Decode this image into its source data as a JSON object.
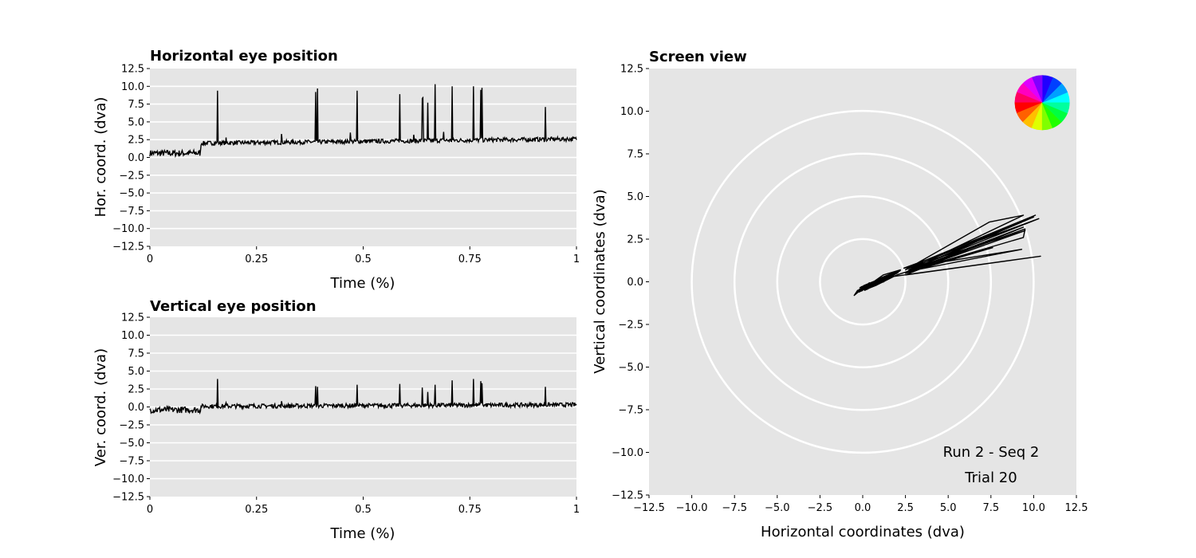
{
  "chart_data": [
    {
      "type": "line",
      "title": "Horizontal eye position",
      "xlabel": "Time (%)",
      "ylabel": "Hor. coord. (dva)",
      "xlim": [
        0,
        1
      ],
      "ylim": [
        -12.5,
        12.5
      ],
      "xticks": [
        "0",
        "0.25",
        "0.5",
        "0.75",
        "1"
      ],
      "yticks": [
        "12.5",
        "10.0",
        "7.5",
        "5.0",
        "2.5",
        "0.0",
        "−2.5",
        "−5.0",
        "−7.5",
        "−10.0",
        "−12.5"
      ],
      "grid": "horizontal",
      "background": "#e5e5e5",
      "line_color": "#000000",
      "baseline": {
        "start_value": 0.6,
        "after_value": 2.0,
        "end_value": 2.6,
        "step_at": 0.12
      },
      "peaks": [
        {
          "t": 0.158,
          "v": 9.4
        },
        {
          "t": 0.388,
          "v": 9.2
        },
        {
          "t": 0.393,
          "v": 9.7
        },
        {
          "t": 0.485,
          "v": 9.4
        },
        {
          "t": 0.585,
          "v": 8.9
        },
        {
          "t": 0.638,
          "v": 8.3
        },
        {
          "t": 0.64,
          "v": 8.4
        },
        {
          "t": 0.651,
          "v": 7.7
        },
        {
          "t": 0.668,
          "v": 10.3
        },
        {
          "t": 0.708,
          "v": 10.0
        },
        {
          "t": 0.758,
          "v": 10.0
        },
        {
          "t": 0.776,
          "v": 9.5
        },
        {
          "t": 0.779,
          "v": 9.8
        },
        {
          "t": 0.927,
          "v": 7.1
        },
        {
          "t": 0.178,
          "v": 2.8
        },
        {
          "t": 0.308,
          "v": 3.3
        },
        {
          "t": 0.47,
          "v": 3.5
        },
        {
          "t": 0.618,
          "v": 3.2
        },
        {
          "t": 0.688,
          "v": 3.6
        }
      ]
    },
    {
      "type": "line",
      "title": "Vertical eye position",
      "xlabel": "Time (%)",
      "ylabel": "Ver. coord. (dva)",
      "xlim": [
        0,
        1
      ],
      "ylim": [
        -12.5,
        12.5
      ],
      "xticks": [
        "0",
        "0.25",
        "0.5",
        "0.75",
        "1"
      ],
      "yticks": [
        "12.5",
        "10.0",
        "7.5",
        "5.0",
        "2.5",
        "0.0",
        "−2.5",
        "−5.0",
        "−7.5",
        "−10.0",
        "−12.5"
      ],
      "grid": "horizontal",
      "background": "#e5e5e5",
      "line_color": "#000000",
      "baseline": {
        "start_value": -0.4,
        "after_value": 0.1,
        "end_value": 0.3,
        "step_at": 0.12
      },
      "peaks": [
        {
          "t": 0.158,
          "v": 3.9
        },
        {
          "t": 0.388,
          "v": 2.9
        },
        {
          "t": 0.393,
          "v": 2.8
        },
        {
          "t": 0.485,
          "v": 3.1
        },
        {
          "t": 0.585,
          "v": 3.2
        },
        {
          "t": 0.638,
          "v": 2.7
        },
        {
          "t": 0.651,
          "v": 2.1
        },
        {
          "t": 0.668,
          "v": 3.1
        },
        {
          "t": 0.708,
          "v": 3.7
        },
        {
          "t": 0.758,
          "v": 3.9
        },
        {
          "t": 0.776,
          "v": 3.6
        },
        {
          "t": 0.779,
          "v": 3.3
        },
        {
          "t": 0.927,
          "v": 2.8
        },
        {
          "t": 0.308,
          "v": 0.8
        },
        {
          "t": 0.178,
          "v": 0.6
        }
      ]
    },
    {
      "type": "line",
      "title": "Screen view",
      "xlabel": "Horizontal coordinates (dva)",
      "ylabel": "Vertical coordinates (dva)",
      "xlim": [
        -12.5,
        12.5
      ],
      "ylim": [
        -12.5,
        12.5
      ],
      "xticks": [
        "−12.5",
        "−10.0",
        "−7.5",
        "−5.0",
        "−2.5",
        "0.0",
        "2.5",
        "5.0",
        "7.5",
        "10.0",
        "12.5"
      ],
      "yticks": [
        "12.5",
        "10.0",
        "7.5",
        "5.0",
        "2.5",
        "0.0",
        "−2.5",
        "−5.0",
        "−7.5",
        "−10.0",
        "−12.5"
      ],
      "background": "#e5e5e5",
      "rings_dva": [
        2.5,
        5.0,
        7.5,
        10.0
      ],
      "ring_color": "#ffffff",
      "color_wheel": {
        "position": "top-right",
        "center": [
          10.5,
          10.5
        ],
        "radius": 1.6,
        "segments": 16
      },
      "trace": [
        [
          -0.5,
          -0.8
        ],
        [
          -0.3,
          -0.5
        ],
        [
          0.3,
          -0.4
        ],
        [
          0.8,
          -0.2
        ],
        [
          1.4,
          0.1
        ],
        [
          2.0,
          0.4
        ],
        [
          2.6,
          0.6
        ],
        [
          9.4,
          2.6
        ],
        [
          9.5,
          3.1
        ],
        [
          2.6,
          0.6
        ],
        [
          10.0,
          3.8
        ],
        [
          2.5,
          0.7
        ],
        [
          7.4,
          3.5
        ],
        [
          9.4,
          3.9
        ],
        [
          2.7,
          0.7
        ],
        [
          10.3,
          3.7
        ],
        [
          2.4,
          0.8
        ],
        [
          9.3,
          1.9
        ],
        [
          2.6,
          0.6
        ],
        [
          10.1,
          3.9
        ],
        [
          2.8,
          0.9
        ],
        [
          9.5,
          3.0
        ],
        [
          2.5,
          0.5
        ],
        [
          7.6,
          2.0
        ],
        [
          2.6,
          0.6
        ],
        [
          9.4,
          3.2
        ],
        [
          2.5,
          0.4
        ],
        [
          10.4,
          1.5
        ],
        [
          1.0,
          0.2
        ],
        [
          2.2,
          0.7
        ],
        [
          1.2,
          0.4
        ],
        [
          0.5,
          -0.1
        ],
        [
          -0.1,
          -0.4
        ],
        [
          -0.5,
          -0.8
        ]
      ],
      "annotations": [
        "Run 2 - Seq 2",
        "Trial 20"
      ]
    }
  ]
}
